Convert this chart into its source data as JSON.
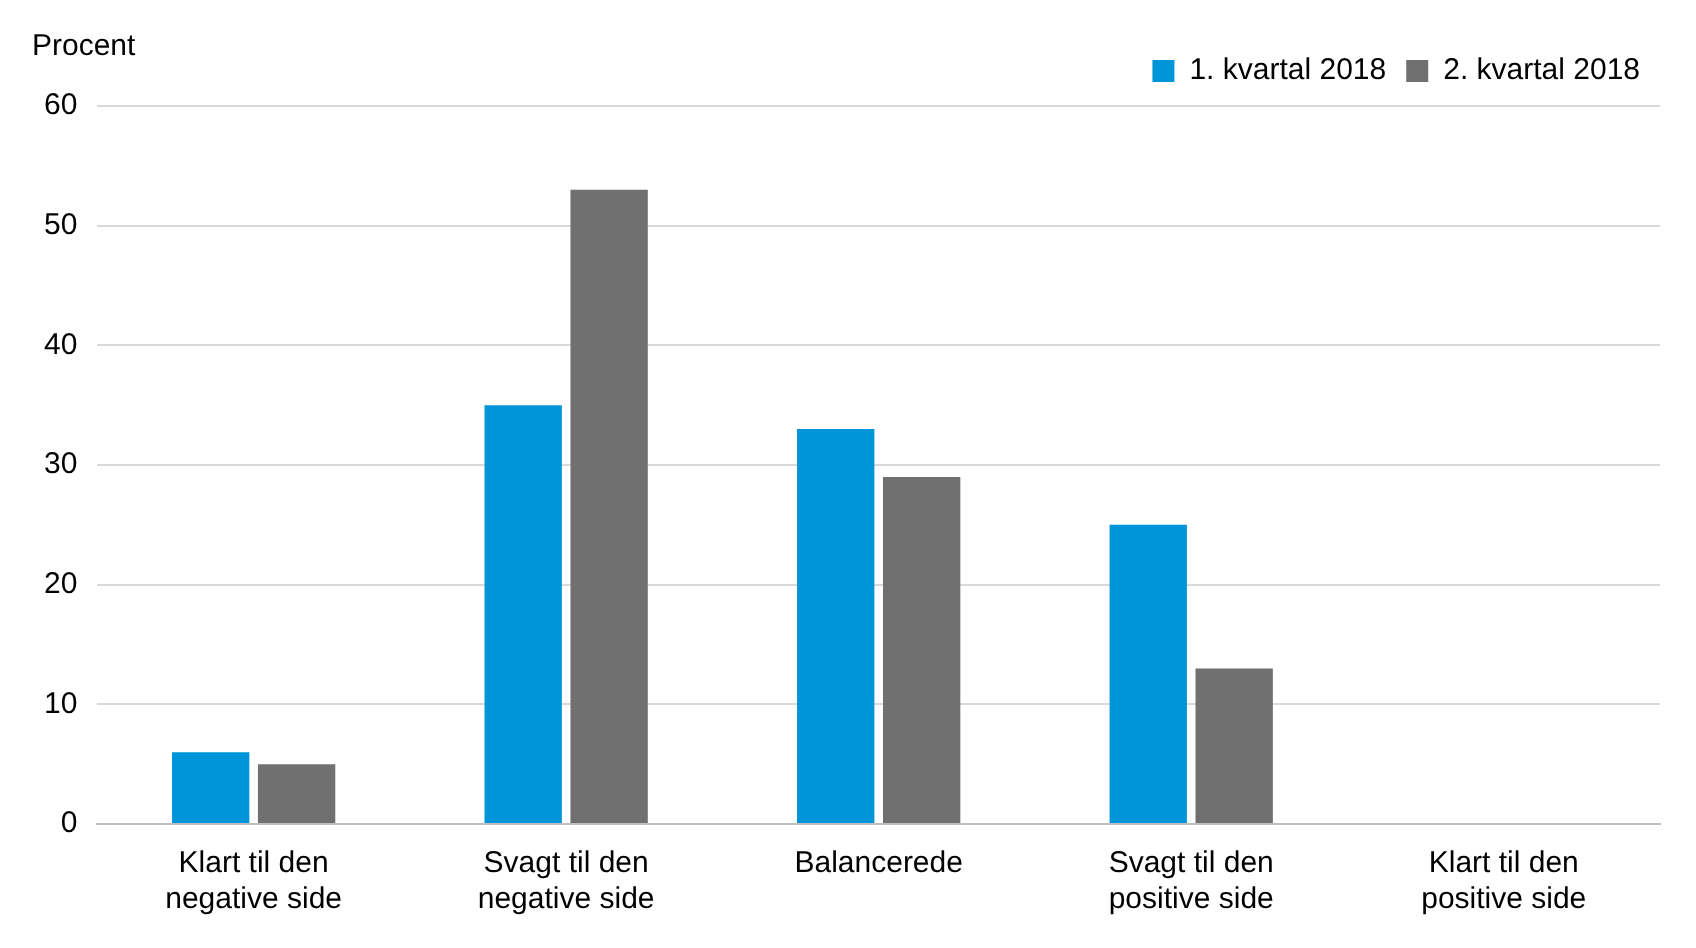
{
  "chart_data": {
    "type": "bar",
    "ylabel": "Procent",
    "categories": [
      "Klart til den negative side",
      "Svagt til den negative side",
      "Balancerede",
      "Svagt til den positive side",
      "Klart til den positive side"
    ],
    "series": [
      {
        "name": "1. kvartal 2018",
        "color": "#0095d9",
        "values": [
          6,
          35,
          33,
          25,
          0
        ]
      },
      {
        "name": "2. kvartal 2018",
        "color": "#707070",
        "values": [
          5,
          53,
          29,
          13,
          0
        ]
      }
    ],
    "ylim": [
      0,
      60
    ],
    "yticks": [
      0,
      10,
      20,
      30,
      40,
      50,
      60
    ],
    "grid": "y",
    "legend": "top right"
  }
}
